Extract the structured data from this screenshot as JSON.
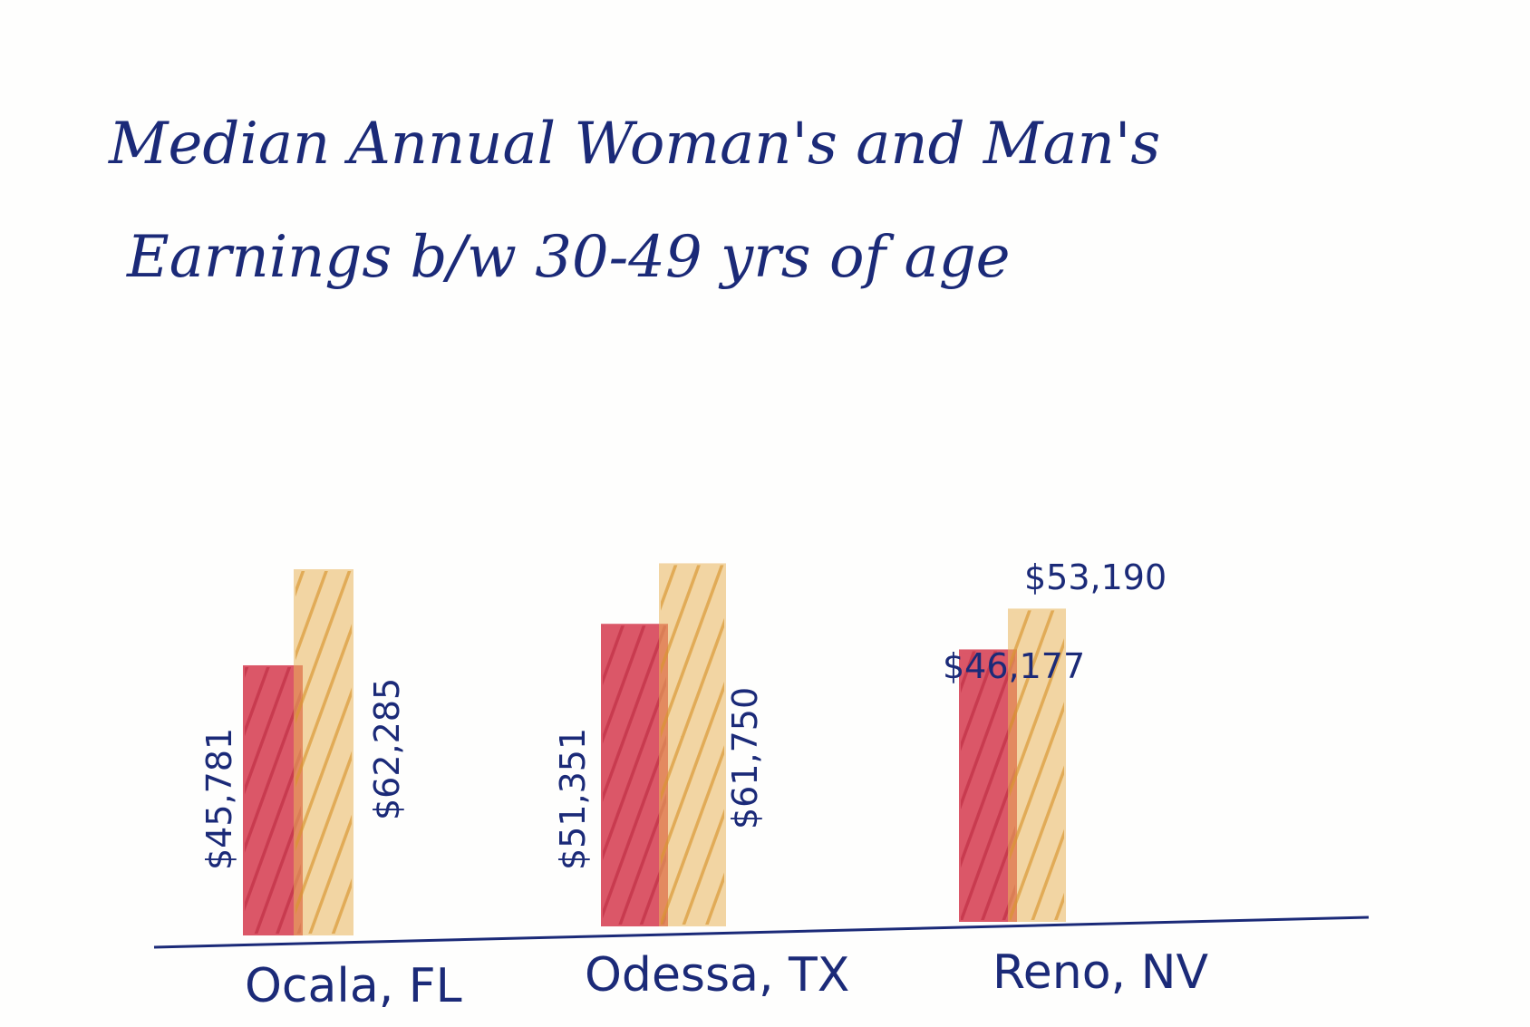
{
  "chart_data": {
    "type": "bar",
    "title_lines": [
      "Median Annual Woman's and Man's",
      "Earnings b/w 30-49 yrs of age"
    ],
    "categories": [
      "Ocala, FL",
      "Odessa, TX",
      "Reno, NV"
    ],
    "series": [
      {
        "values": [
          45781,
          51351,
          46177
        ],
        "labels": [
          "$45,781",
          "$51,351",
          "$46,177"
        ],
        "color": "#d63a4f"
      },
      {
        "values": [
          62285,
          61750,
          53190
        ],
        "labels": [
          "$62,285",
          "$61,750",
          "$53,190"
        ],
        "color": "#eab45a"
      }
    ],
    "ylim": [
      0,
      65000
    ],
    "grid": false,
    "legend": "none"
  },
  "colors": {
    "ink": "#1b2a78",
    "paper": "#fefefd"
  }
}
